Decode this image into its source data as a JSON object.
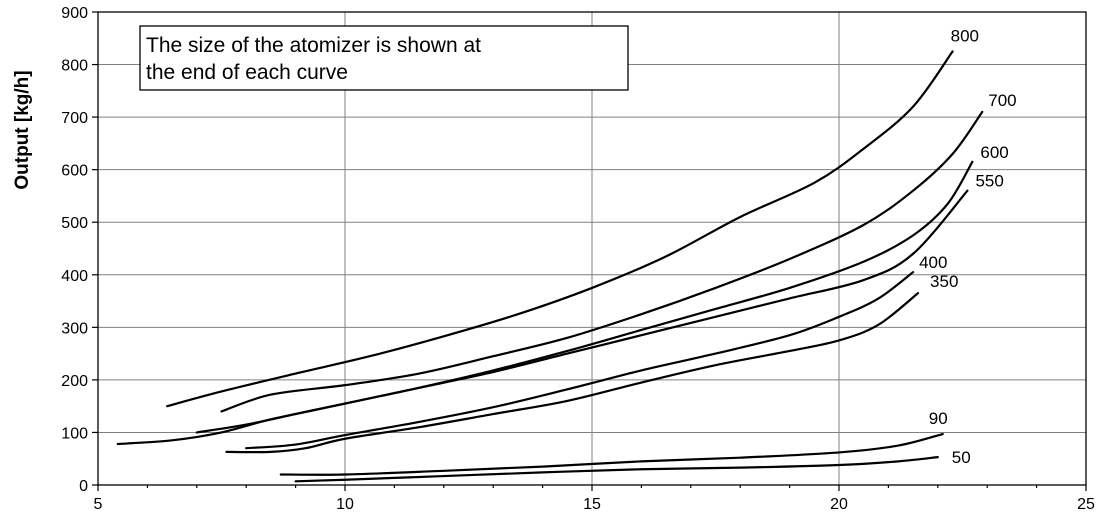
{
  "chart_data": {
    "type": "line",
    "title": "",
    "ylabel": "Output [kg/h]",
    "xlabel": "",
    "xlim": [
      5,
      25
    ],
    "ylim": [
      0,
      900
    ],
    "x_ticks": [
      5,
      10,
      15,
      20,
      25
    ],
    "y_ticks": [
      0,
      100,
      200,
      300,
      400,
      500,
      600,
      700,
      800,
      900
    ],
    "grid": true,
    "annotation": "The size of the atomizer is shown at the end of each curve",
    "series": [
      {
        "name": "800",
        "x": [
          6.4,
          7.5,
          9,
          10.5,
          12,
          13.5,
          15,
          16.5,
          18,
          19.5,
          20.5,
          21.5,
          22.3
        ],
        "y": [
          150,
          178,
          212,
          245,
          283,
          325,
          375,
          435,
          510,
          575,
          640,
          720,
          825
        ]
      },
      {
        "name": "700",
        "x": [
          7.5,
          8.5,
          10,
          11.5,
          13,
          14.5,
          16,
          17.5,
          19,
          20.5,
          21.5,
          22.3,
          22.9
        ],
        "y": [
          140,
          172,
          190,
          212,
          245,
          280,
          325,
          375,
          430,
          495,
          560,
          630,
          710
        ]
      },
      {
        "name": "600",
        "x": [
          7,
          8,
          9,
          10,
          11.5,
          13,
          14.5,
          16,
          17.5,
          19,
          20.5,
          21.5,
          22.2,
          22.7
        ],
        "y": [
          100,
          115,
          135,
          155,
          185,
          218,
          255,
          295,
          335,
          375,
          425,
          475,
          535,
          615
        ]
      },
      {
        "name": "550",
        "x": [
          5.4,
          6.5,
          7.5,
          8.5,
          10,
          11.5,
          13,
          14.5,
          16,
          17.5,
          19,
          20.5,
          21.5,
          22.6
        ],
        "y": [
          78,
          85,
          100,
          125,
          155,
          185,
          215,
          250,
          285,
          320,
          355,
          390,
          440,
          560
        ]
      },
      {
        "name": "400",
        "x": [
          8,
          9,
          10,
          11.5,
          13,
          14.5,
          16,
          17.5,
          19,
          20,
          20.8,
          21.5
        ],
        "y": [
          70,
          77,
          95,
          120,
          148,
          182,
          218,
          250,
          285,
          320,
          355,
          405
        ]
      },
      {
        "name": "350",
        "x": [
          7.6,
          8.5,
          9.2,
          10,
          11.5,
          13,
          14.5,
          16,
          17.5,
          19,
          20,
          20.8,
          21.6
        ],
        "y": [
          63,
          63,
          70,
          88,
          110,
          135,
          160,
          195,
          228,
          255,
          275,
          305,
          365
        ]
      },
      {
        "name": "90",
        "x": [
          8.7,
          10,
          12,
          14,
          16,
          18,
          20,
          21.2,
          22.1
        ],
        "y": [
          20,
          20,
          27,
          35,
          45,
          52,
          62,
          75,
          97
        ]
      },
      {
        "name": "50",
        "x": [
          9,
          10,
          12,
          14,
          16,
          18,
          20,
          21.2,
          22
        ],
        "y": [
          7,
          10,
          17,
          24,
          30,
          33,
          38,
          45,
          53
        ]
      }
    ]
  }
}
